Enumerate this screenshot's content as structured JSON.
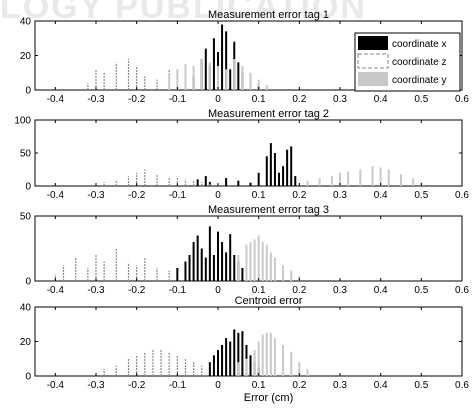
{
  "watermark_text": "LOGY PUBLICATION",
  "legend": {
    "items": [
      {
        "label": "coordinate x",
        "color": "#000000",
        "style": "solid"
      },
      {
        "label": "coordinate z",
        "color": "#888888",
        "style": "dashed"
      },
      {
        "label": "coordinate y",
        "color": "#c8c8c8",
        "style": "solid"
      }
    ]
  },
  "chart_data": [
    {
      "type": "bar",
      "title": "Measurement error tag 1",
      "xlabel": "",
      "xlim": [
        -0.45,
        0.6
      ],
      "ylim": [
        0,
        40
      ],
      "xticks": [
        -0.4,
        -0.3,
        -0.2,
        -0.1,
        0,
        0.1,
        0.2,
        0.3,
        0.4,
        0.5,
        0.6
      ],
      "yticks": [
        0,
        20,
        40
      ],
      "series": [
        {
          "name": "coordinate x",
          "x": [
            -0.06,
            -0.04,
            -0.03,
            -0.02,
            -0.01,
            0.0,
            0.01,
            0.02,
            0.03,
            0.04,
            0.05,
            0.06,
            0.08,
            0.1
          ],
          "y": [
            8,
            18,
            24,
            14,
            30,
            22,
            38,
            34,
            12,
            28,
            16,
            10,
            6,
            3
          ]
        },
        {
          "name": "coordinate z",
          "x": [
            -0.32,
            -0.3,
            -0.28,
            -0.25,
            -0.22,
            -0.2,
            -0.18,
            -0.15,
            -0.12,
            -0.1,
            -0.08,
            -0.06,
            -0.04,
            -0.02
          ],
          "y": [
            4,
            12,
            10,
            16,
            18,
            14,
            8,
            6,
            12,
            10,
            14,
            6,
            4,
            3
          ]
        },
        {
          "name": "coordinate y",
          "x": [
            -0.12,
            -0.1,
            -0.08,
            -0.06,
            -0.04,
            -0.02,
            0.0,
            0.02,
            0.04,
            0.06,
            0.08,
            0.1,
            0.12
          ],
          "y": [
            10,
            12,
            15,
            14,
            18,
            16,
            14,
            12,
            18,
            14,
            10,
            6,
            3
          ]
        }
      ]
    },
    {
      "type": "bar",
      "title": "Measurement error tag 2",
      "xlabel": "",
      "xlim": [
        -0.45,
        0.6
      ],
      "ylim": [
        0,
        100
      ],
      "xticks": [
        -0.4,
        -0.3,
        -0.2,
        -0.1,
        0,
        0.1,
        0.2,
        0.3,
        0.4,
        0.5,
        0.6
      ],
      "yticks": [
        0,
        50,
        100
      ],
      "series": [
        {
          "name": "coordinate x",
          "x": [
            -0.05,
            -0.03,
            -0.02,
            0.02,
            0.05,
            0.08,
            0.1,
            0.12,
            0.13,
            0.14,
            0.15,
            0.16,
            0.17,
            0.18,
            0.19
          ],
          "y": [
            10,
            15,
            6,
            12,
            8,
            5,
            20,
            45,
            65,
            50,
            20,
            30,
            55,
            60,
            15
          ]
        },
        {
          "name": "coordinate z",
          "x": [
            -0.28,
            -0.25,
            -0.22,
            -0.2,
            -0.18,
            -0.15,
            -0.12,
            -0.1,
            -0.08,
            -0.06,
            -0.04,
            -0.02
          ],
          "y": [
            6,
            8,
            15,
            20,
            25,
            18,
            14,
            12,
            10,
            8,
            6,
            4
          ]
        },
        {
          "name": "coordinate y",
          "x": [
            0.22,
            0.25,
            0.28,
            0.3,
            0.32,
            0.35,
            0.38,
            0.4,
            0.42,
            0.45,
            0.48,
            0.5
          ],
          "y": [
            8,
            12,
            15,
            20,
            22,
            25,
            30,
            28,
            25,
            18,
            12,
            5
          ]
        }
      ]
    },
    {
      "type": "bar",
      "title": "Measurement error tag 3",
      "xlabel": "",
      "xlim": [
        -0.45,
        0.6
      ],
      "ylim": [
        0,
        50
      ],
      "xticks": [
        -0.4,
        -0.3,
        -0.2,
        -0.1,
        0,
        0.1,
        0.2,
        0.3,
        0.4,
        0.5,
        0.6
      ],
      "yticks": [
        0,
        50
      ],
      "series": [
        {
          "name": "coordinate x",
          "x": [
            -0.1,
            -0.08,
            -0.07,
            -0.06,
            -0.05,
            -0.04,
            -0.03,
            -0.02,
            -0.01,
            0.0,
            0.01,
            0.02,
            0.03,
            0.04,
            0.05,
            0.06
          ],
          "y": [
            10,
            15,
            20,
            30,
            35,
            25,
            18,
            42,
            20,
            38,
            30,
            22,
            36,
            20,
            15,
            10
          ]
        },
        {
          "name": "coordinate z",
          "x": [
            -0.4,
            -0.38,
            -0.35,
            -0.32,
            -0.3,
            -0.28,
            -0.25,
            -0.22,
            -0.2,
            -0.18,
            -0.15,
            -0.12
          ],
          "y": [
            5,
            12,
            18,
            10,
            20,
            15,
            25,
            14,
            12,
            18,
            10,
            8
          ]
        },
        {
          "name": "coordinate y",
          "x": [
            0.05,
            0.07,
            0.08,
            0.09,
            0.1,
            0.11,
            0.12,
            0.13,
            0.14,
            0.16,
            0.18,
            0.2
          ],
          "y": [
            20,
            28,
            30,
            32,
            35,
            30,
            28,
            22,
            18,
            12,
            8,
            4
          ]
        }
      ]
    },
    {
      "type": "bar",
      "title": "Centroid error",
      "xlabel": "Error (cm)",
      "xlim": [
        -0.45,
        0.6
      ],
      "ylim": [
        0,
        40
      ],
      "xticks": [
        -0.4,
        -0.3,
        -0.2,
        -0.1,
        0,
        0.1,
        0.2,
        0.3,
        0.4,
        0.5,
        0.6
      ],
      "yticks": [
        0,
        20,
        40
      ],
      "series": [
        {
          "name": "coordinate x",
          "x": [
            -0.02,
            -0.01,
            0.0,
            0.01,
            0.02,
            0.03,
            0.04,
            0.05,
            0.06,
            0.07,
            0.08,
            0.09,
            0.1
          ],
          "y": [
            8,
            12,
            15,
            18,
            22,
            20,
            27,
            25,
            26,
            18,
            12,
            8,
            5
          ]
        },
        {
          "name": "coordinate z",
          "x": [
            -0.28,
            -0.25,
            -0.22,
            -0.2,
            -0.18,
            -0.16,
            -0.14,
            -0.12,
            -0.1,
            -0.08,
            -0.06,
            -0.04
          ],
          "y": [
            4,
            6,
            10,
            12,
            14,
            15,
            15,
            14,
            12,
            10,
            8,
            6
          ]
        },
        {
          "name": "coordinate y",
          "x": [
            0.05,
            0.07,
            0.09,
            0.1,
            0.11,
            0.12,
            0.13,
            0.14,
            0.16,
            0.18,
            0.2,
            0.22
          ],
          "y": [
            8,
            10,
            15,
            20,
            24,
            25,
            25,
            22,
            18,
            14,
            8,
            4
          ]
        }
      ]
    }
  ]
}
